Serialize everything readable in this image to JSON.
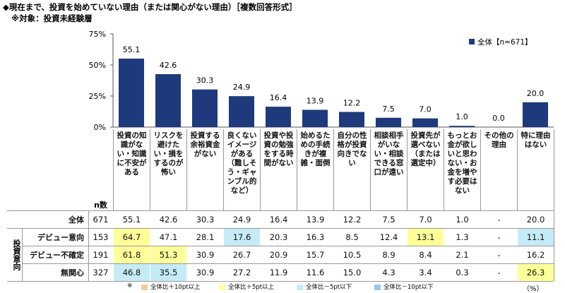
{
  "header": {
    "title": "◆現在まで、投資を始めていない理由（または関心がない理由）［複数回答形式］",
    "subtitle": "※対象：投資未経験層"
  },
  "chart_data": {
    "type": "bar",
    "categories": [
      "投資の知識がない・知識に不安がある",
      "リスクを避けたい・損をするのが怖い",
      "投資する余裕資金がない",
      "良くないイメージがある（難しそう・ギャンブル的など）",
      "投資や投資の勉強をする時間がない",
      "始めるための手続きが複雑・面倒",
      "自分の性格が投資向きでない",
      "相談相手がいない・相談できる窓口が遠い",
      "投資先が選べない（または選定中）",
      "もっとお金が欲しいと思わない・お金を増やす必要はない",
      "その他の理由",
      "特に理由はない"
    ],
    "series": [
      {
        "name": "全体【n=671】",
        "color": "#1f3a7c",
        "values": [
          55.1,
          42.6,
          30.3,
          24.9,
          16.4,
          13.9,
          12.2,
          7.5,
          7.0,
          1.0,
          0.0,
          20.0
        ],
        "value_labels": [
          "55.1",
          "42.6",
          "30.3",
          "24.9",
          "16.4",
          "13.9",
          "12.2",
          "7.5",
          "7.0",
          "1.0",
          "0.0",
          "20.0"
        ]
      }
    ],
    "ylim": [
      0,
      75
    ],
    "yticks": [
      {
        "value": 0,
        "label": "0%"
      },
      {
        "value": 25,
        "label": "25%"
      },
      {
        "value": 50,
        "label": "50%"
      },
      {
        "value": 75,
        "label": "75%"
      }
    ],
    "legend_position": "top-right"
  },
  "table": {
    "n_header": "n数",
    "group_label": "投資意向",
    "rows": [
      {
        "label": "全体",
        "n": 671,
        "cells": [
          "55.1",
          "42.6",
          "30.3",
          "24.9",
          "16.4",
          "13.9",
          "12.2",
          "7.5",
          "7.0",
          "1.0",
          "-",
          "20.0"
        ],
        "levels": [
          null,
          null,
          null,
          null,
          null,
          null,
          null,
          null,
          null,
          null,
          null,
          null
        ]
      },
      {
        "label": "デビュー意向",
        "n": 153,
        "cells": [
          "64.7",
          "47.1",
          "28.1",
          "17.6",
          "20.3",
          "16.3",
          "8.5",
          "12.4",
          "13.1",
          "1.3",
          "-",
          "11.1"
        ],
        "levels": [
          1,
          null,
          null,
          2,
          null,
          null,
          null,
          null,
          1,
          null,
          null,
          2
        ]
      },
      {
        "label": "デビュー不確定",
        "n": 191,
        "cells": [
          "61.8",
          "51.3",
          "30.9",
          "26.7",
          "20.9",
          "15.7",
          "10.5",
          "8.9",
          "8.4",
          "2.1",
          "-",
          "16.2"
        ],
        "levels": [
          1,
          1,
          null,
          null,
          null,
          null,
          null,
          null,
          null,
          null,
          null,
          null
        ]
      },
      {
        "label": "無関心",
        "n": 327,
        "cells": [
          "46.8",
          "35.5",
          "30.9",
          "27.2",
          "11.9",
          "11.6",
          "15.0",
          "4.3",
          "3.4",
          "0.3",
          "-",
          "26.3"
        ],
        "levels": [
          2,
          2,
          null,
          null,
          null,
          null,
          null,
          null,
          null,
          null,
          null,
          1
        ]
      }
    ]
  },
  "legend": {
    "note": "※",
    "items": [
      {
        "label": "全体比＋10pt以上",
        "color": "#f8c99c"
      },
      {
        "label": "全体比＋5pt以上",
        "color": "#ffff99"
      },
      {
        "label": "全体比－5pt以下",
        "color": "#c5ebf7"
      },
      {
        "label": "全体比－10pt以下",
        "color": "#9cc4e8"
      }
    ],
    "unit": "（%）"
  }
}
